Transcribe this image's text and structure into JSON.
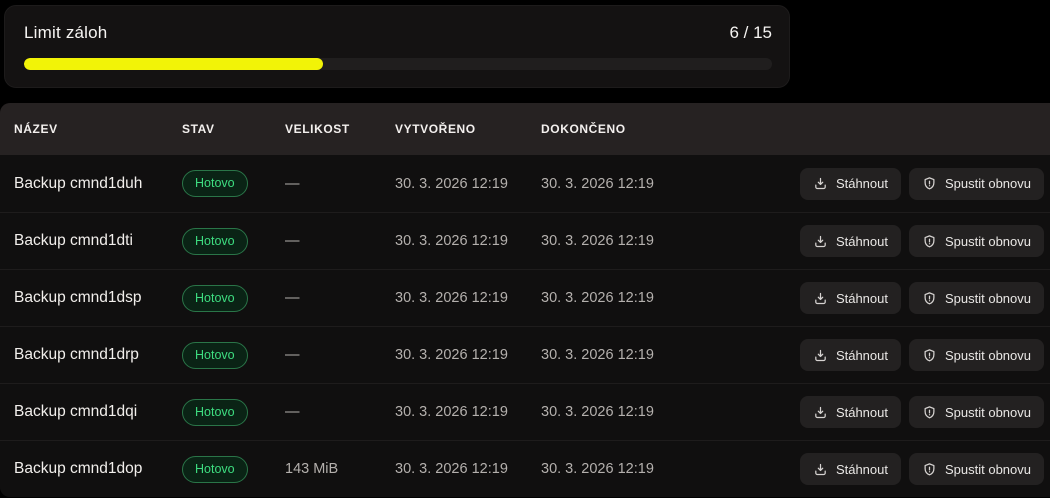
{
  "limit_card": {
    "title": "Limit záloh",
    "count_label": "6 / 15",
    "used": 6,
    "total": 15,
    "progress_percent": 40,
    "fill_color": "#f2f307",
    "track_color": "#201e1e"
  },
  "table": {
    "columns": [
      {
        "label": "Název"
      },
      {
        "label": "Stav"
      },
      {
        "label": "Velikost"
      },
      {
        "label": "Vytvořeno"
      },
      {
        "label": "Dokončeno"
      }
    ],
    "rows": [
      {
        "name": "Backup cmnd1duh",
        "status": "Hotovo",
        "size": "—",
        "created": "30. 3. 2026 12:19",
        "completed": "30. 3. 2026 12:19"
      },
      {
        "name": "Backup cmnd1dti",
        "status": "Hotovo",
        "size": "—",
        "created": "30. 3. 2026 12:19",
        "completed": "30. 3. 2026 12:19"
      },
      {
        "name": "Backup cmnd1dsp",
        "status": "Hotovo",
        "size": "—",
        "created": "30. 3. 2026 12:19",
        "completed": "30. 3. 2026 12:19"
      },
      {
        "name": "Backup cmnd1drp",
        "status": "Hotovo",
        "size": "—",
        "created": "30. 3. 2026 12:19",
        "completed": "30. 3. 2026 12:19"
      },
      {
        "name": "Backup cmnd1dqi",
        "status": "Hotovo",
        "size": "—",
        "created": "30. 3. 2026 12:19",
        "completed": "30. 3. 2026 12:19"
      },
      {
        "name": "Backup cmnd1dop",
        "status": "Hotovo",
        "size": "143 MiB",
        "created": "30. 3. 2026 12:19",
        "completed": "30. 3. 2026 12:19"
      }
    ],
    "actions": {
      "download_label": "Stáhnout",
      "restore_label": "Spustit obnovu",
      "download_icon": "download-tray-icon",
      "restore_icon": "shield-alert-icon"
    },
    "status_ok_color": "#3edd80"
  }
}
